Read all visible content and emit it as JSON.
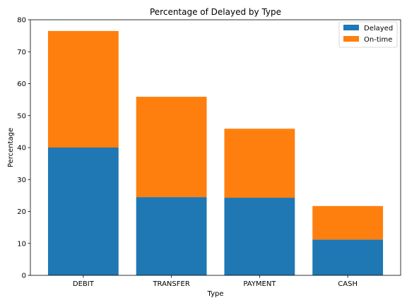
{
  "chart_data": {
    "type": "bar",
    "stacked": true,
    "title": "Percentage of Delayed by Type",
    "xlabel": "Type",
    "ylabel": "Percentage",
    "categories": [
      "DEBIT",
      "TRANSFER",
      "PAYMENT",
      "CASH"
    ],
    "series": [
      {
        "name": "Delayed",
        "color": "#1f77b4",
        "values": [
          40.0,
          24.5,
          24.3,
          11.2
        ]
      },
      {
        "name": "On-time",
        "color": "#ff7f0e",
        "values": [
          36.5,
          31.4,
          21.6,
          10.5
        ]
      }
    ],
    "ylim": [
      0,
      80
    ],
    "yticks": [
      0,
      10,
      20,
      30,
      40,
      50,
      60,
      70,
      80
    ],
    "grid": false,
    "legend_position": "top-right"
  }
}
